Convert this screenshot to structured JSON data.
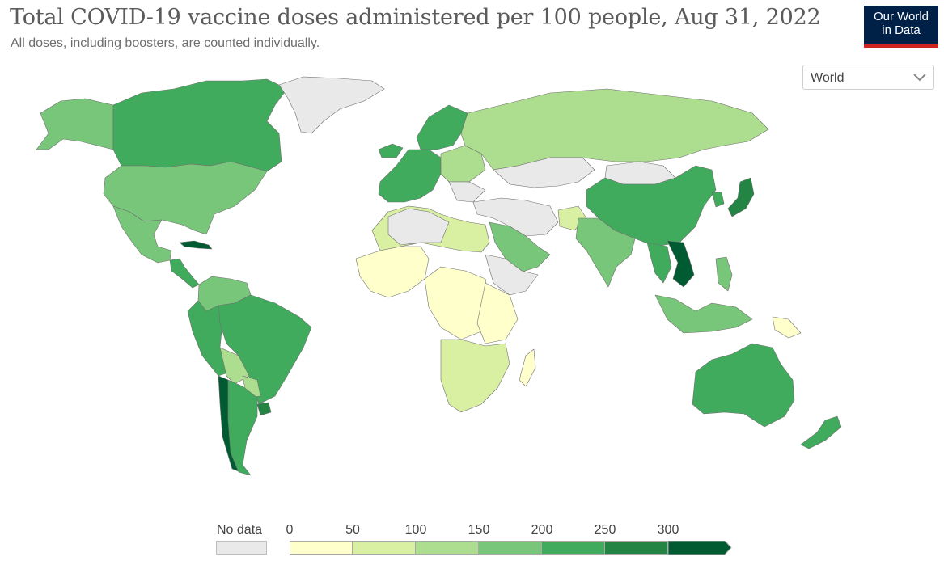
{
  "header": {
    "title": "Total COVID-19 vaccine doses administered per 100 people, Aug 31, 2022",
    "subtitle": "All doses, including boosters, are counted individually."
  },
  "logo": {
    "line1": "Our World",
    "line2": "in Data",
    "bg": "#002147",
    "bar": "#ce261e"
  },
  "region_select": {
    "value": "World",
    "icon": "chevron-down-icon"
  },
  "legend": {
    "no_data_label": "No data",
    "no_data_color": "#e9e9e9",
    "ticks": [
      "0",
      "50",
      "100",
      "150",
      "200",
      "250",
      "300"
    ],
    "colors": [
      "#ffffcc",
      "#d9f0a3",
      "#addd8e",
      "#78c679",
      "#41ab5d",
      "#238443",
      "#005a32"
    ]
  },
  "map_regions": [
    {
      "name": "Canada",
      "color": "#41ab5d"
    },
    {
      "name": "Alaska",
      "color": "#78c679"
    },
    {
      "name": "United States",
      "color": "#78c679"
    },
    {
      "name": "Greenland",
      "color": "#e9e9e9"
    },
    {
      "name": "Mexico",
      "color": "#78c679"
    },
    {
      "name": "Cuba",
      "color": "#005a32"
    },
    {
      "name": "Central America",
      "color": "#41ab5d"
    },
    {
      "name": "Colombia & Venezuela",
      "color": "#78c679"
    },
    {
      "name": "Peru & Ecuador",
      "color": "#41ab5d"
    },
    {
      "name": "Brazil",
      "color": "#41ab5d"
    },
    {
      "name": "Bolivia",
      "color": "#addd8e"
    },
    {
      "name": "Paraguay",
      "color": "#addd8e"
    },
    {
      "name": "Chile",
      "color": "#005a32"
    },
    {
      "name": "Argentina",
      "color": "#41ab5d"
    },
    {
      "name": "Uruguay",
      "color": "#238443"
    },
    {
      "name": "Iceland",
      "color": "#41ab5d"
    },
    {
      "name": "Scandinavia",
      "color": "#41ab5d"
    },
    {
      "name": "Western Europe",
      "color": "#41ab5d"
    },
    {
      "name": "Eastern Europe",
      "color": "#addd8e"
    },
    {
      "name": "Balkans",
      "color": "#e9e9e9"
    },
    {
      "name": "Russia",
      "color": "#addd8e"
    },
    {
      "name": "Kazakhstan",
      "color": "#e9e9e9"
    },
    {
      "name": "Mongolia",
      "color": "#e9e9e9"
    },
    {
      "name": "China",
      "color": "#41ab5d"
    },
    {
      "name": "Japan",
      "color": "#238443"
    },
    {
      "name": "South Korea",
      "color": "#41ab5d"
    },
    {
      "name": "India",
      "color": "#78c679"
    },
    {
      "name": "Middle East",
      "color": "#e9e9e9"
    },
    {
      "name": "Saudi Arabia",
      "color": "#78c679"
    },
    {
      "name": "Afghanistan",
      "color": "#d9f0a3"
    },
    {
      "name": "Southeast Asia",
      "color": "#41ab5d"
    },
    {
      "name": "Vietnam & Cambodia",
      "color": "#005a32"
    },
    {
      "name": "Philippines",
      "color": "#78c679"
    },
    {
      "name": "Indonesia",
      "color": "#78c679"
    },
    {
      "name": "Papua New Guinea",
      "color": "#ffffcc"
    },
    {
      "name": "Australia",
      "color": "#41ab5d"
    },
    {
      "name": "New Zealand",
      "color": "#41ab5d"
    },
    {
      "name": "North Africa",
      "color": "#d9f0a3"
    },
    {
      "name": "Algeria & Libya",
      "color": "#e9e9e9"
    },
    {
      "name": "West Africa",
      "color": "#ffffcc"
    },
    {
      "name": "Central Africa",
      "color": "#ffffcc"
    },
    {
      "name": "East Africa",
      "color": "#ffffcc"
    },
    {
      "name": "Horn of Africa",
      "color": "#e9e9e9"
    },
    {
      "name": "Southern Africa",
      "color": "#d9f0a3"
    },
    {
      "name": "Madagascar",
      "color": "#ffffcc"
    }
  ]
}
